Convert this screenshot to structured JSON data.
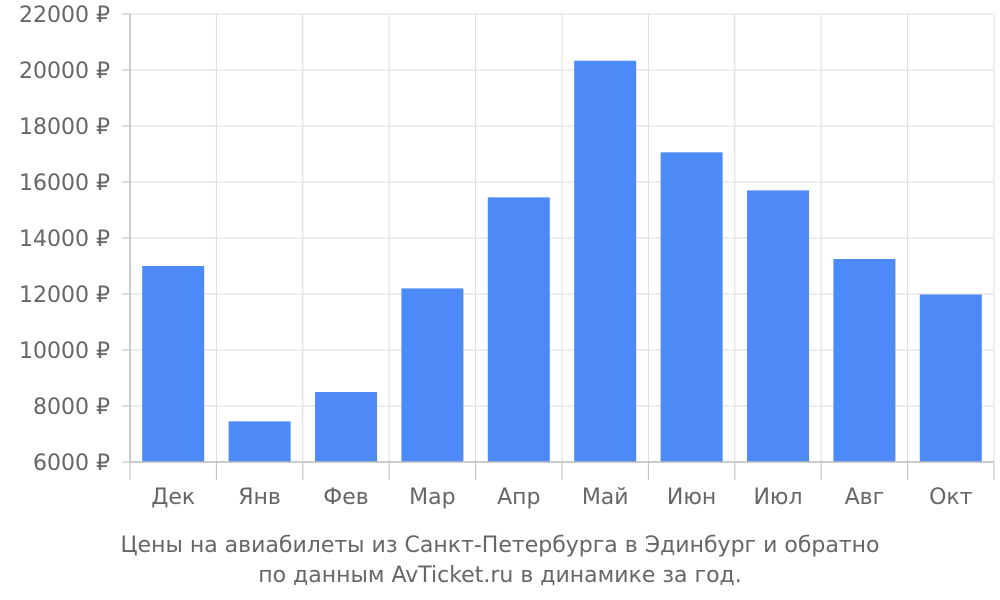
{
  "chart_data": {
    "type": "bar",
    "categories": [
      "Дек",
      "Янв",
      "Фев",
      "Мар",
      "Апр",
      "Май",
      "Июн",
      "Июл",
      "Авг",
      "Окт"
    ],
    "values": [
      13000,
      7450,
      8500,
      12200,
      15450,
      20330,
      17060,
      15700,
      13250,
      11980
    ],
    "ylim": [
      6000,
      22000
    ],
    "yticks": [
      6000,
      8000,
      10000,
      12000,
      14000,
      16000,
      18000,
      20000,
      22000
    ],
    "ytick_labels": [
      "6000 ₽",
      "8000 ₽",
      "10000 ₽",
      "12000 ₽",
      "14000 ₽",
      "16000 ₽",
      "18000 ₽",
      "20000 ₽",
      "22000 ₽"
    ],
    "grid": true,
    "bar_color": "#4d8af8",
    "grid_color": "#dddddd",
    "axis_color": "#bbbbbb",
    "text_color": "#666666"
  },
  "caption": {
    "line1": "Цены на авиабилеты из Санкт-Петербурга в Эдинбург и обратно",
    "line2": "по данным AvTicket.ru в динамике за год."
  }
}
